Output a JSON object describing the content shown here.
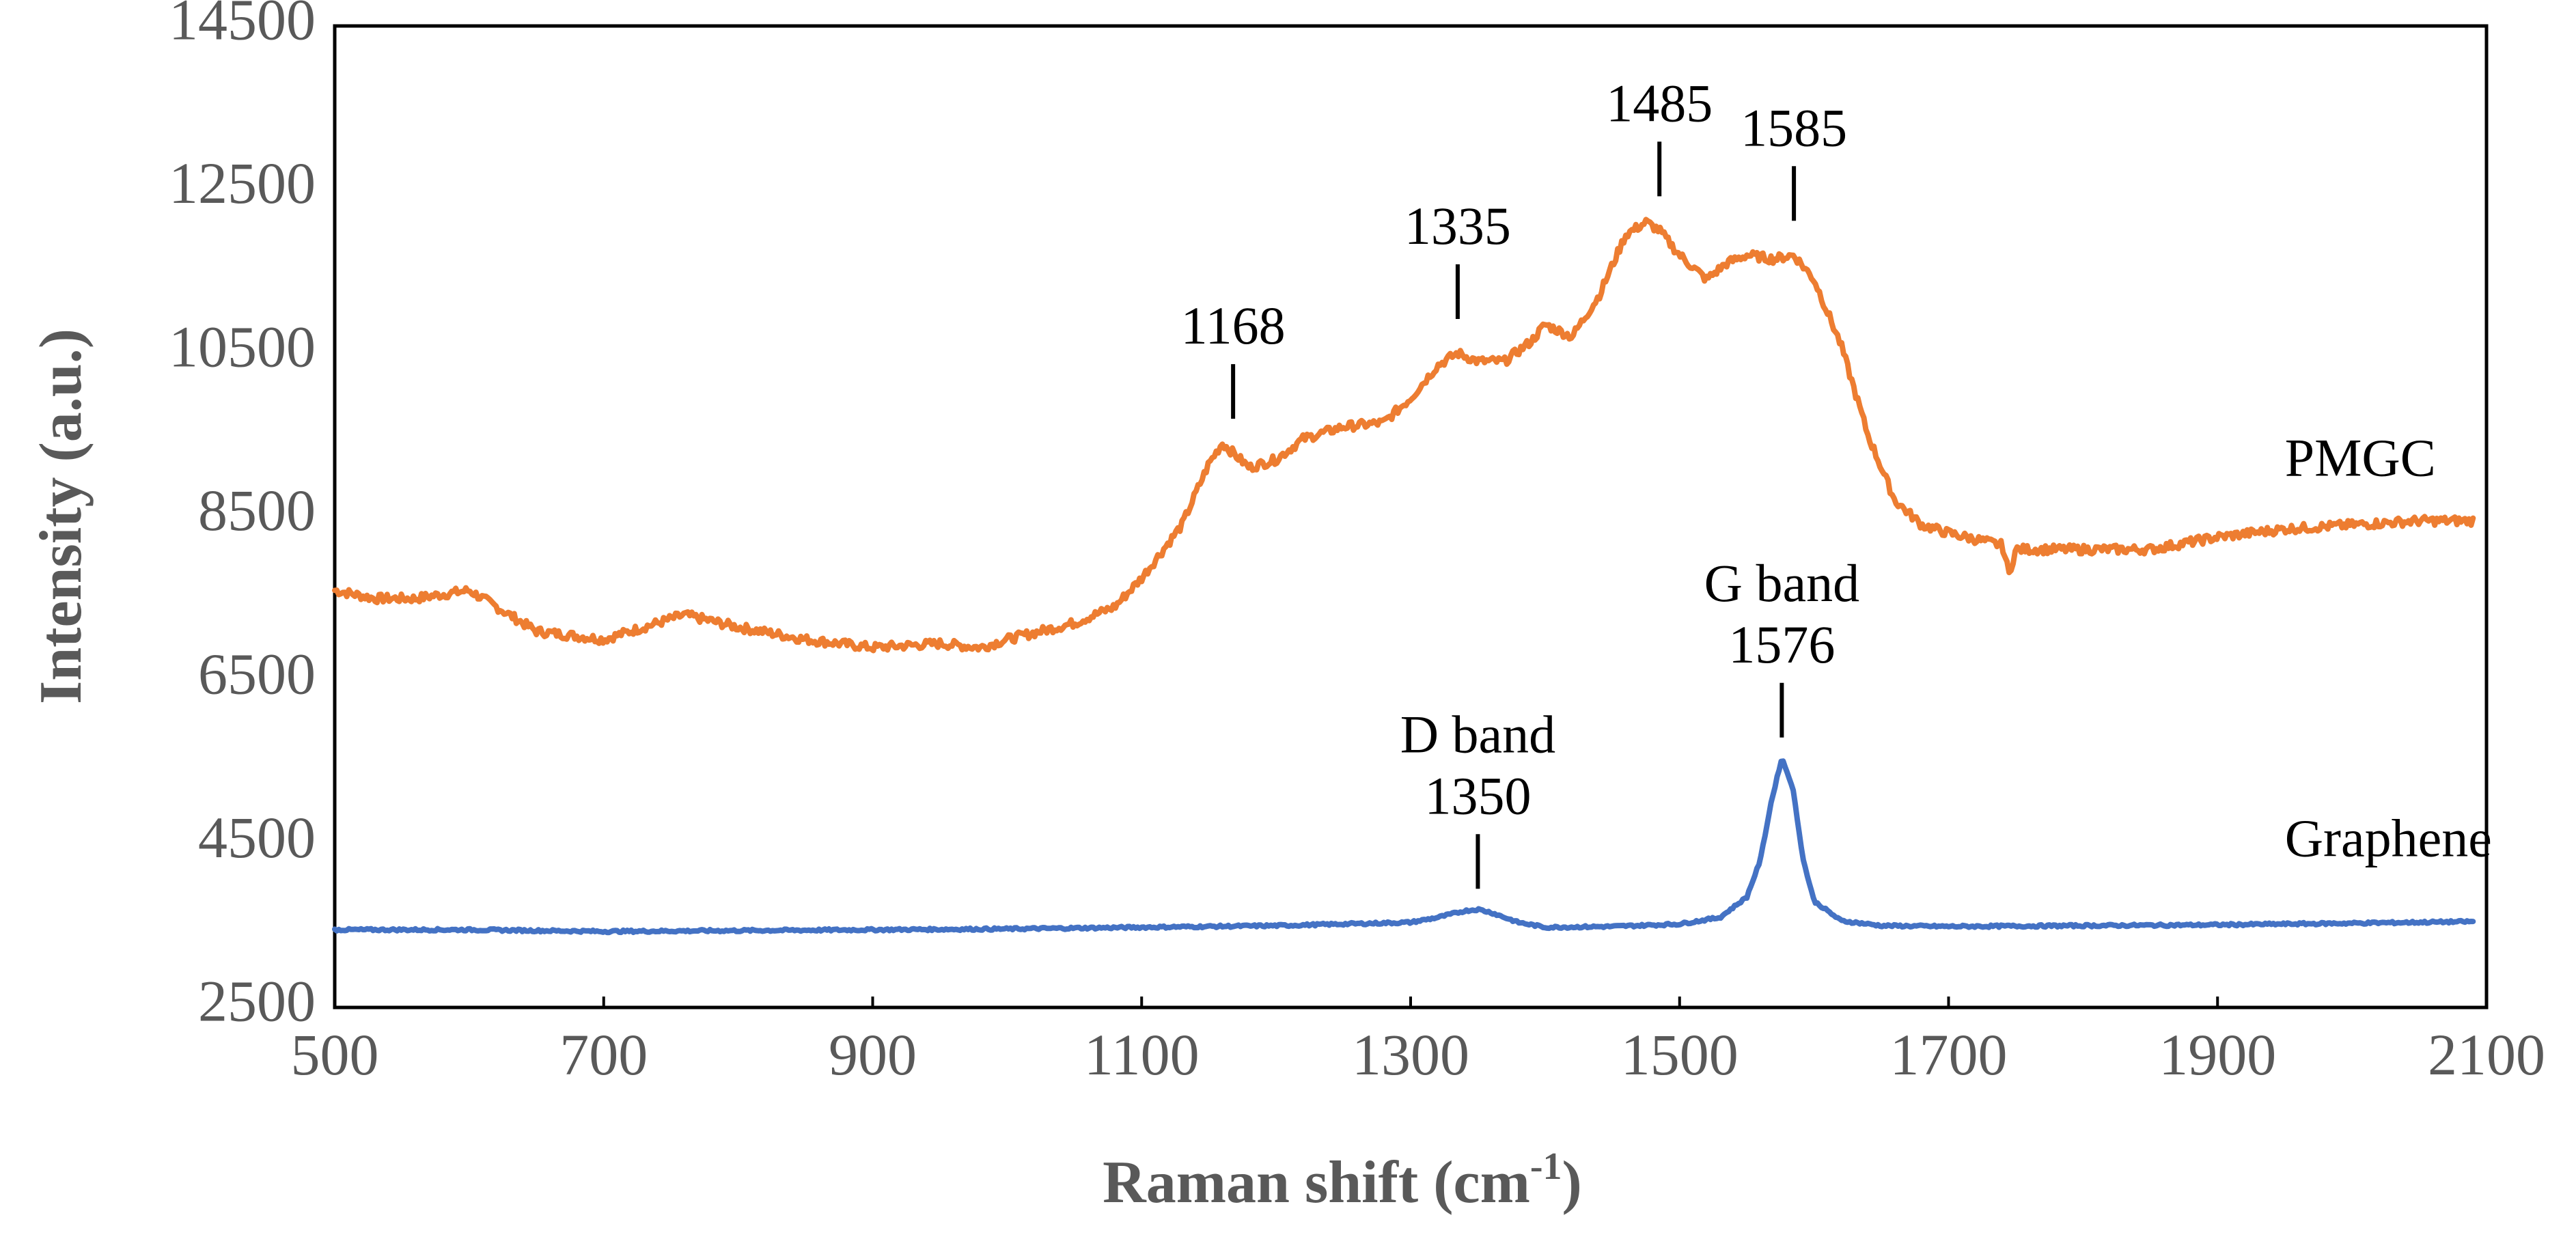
{
  "chart_data": {
    "type": "line",
    "title": "",
    "xlabel": "Raman shift (cm",
    "xlabel_sup": "-1",
    "xlabel_end": ")",
    "ylabel": "Intensity (a.u.)",
    "xlim": [
      500,
      2100
    ],
    "ylim": [
      2500,
      14500
    ],
    "xticks": [
      500,
      700,
      900,
      1100,
      1300,
      1500,
      1700,
      1900,
      2100
    ],
    "yticks": [
      2500,
      4500,
      6500,
      8500,
      10500,
      12500,
      14500
    ],
    "grid": false,
    "series": [
      {
        "name": "PMGC",
        "color": "#ED7D31",
        "x": [
          500,
          530,
          560,
          600,
          630,
          650,
          700,
          730,
          760,
          800,
          850,
          900,
          950,
          980,
          1000,
          1050,
          1080,
          1100,
          1130,
          1150,
          1160,
          1170,
          1180,
          1200,
          1220,
          1250,
          1280,
          1300,
          1320,
          1335,
          1350,
          1370,
          1390,
          1400,
          1420,
          1440,
          1460,
          1475,
          1485,
          1500,
          1520,
          1535,
          1550,
          1570,
          1585,
          1600,
          1620,
          1640,
          1660,
          1680,
          1700,
          1740,
          1745,
          1750,
          1800,
          1850,
          1900,
          1950,
          2000,
          2050,
          2090
        ],
        "y": [
          7600,
          7500,
          7500,
          7600,
          7300,
          7100,
          7000,
          7150,
          7300,
          7150,
          7000,
          6900,
          6950,
          6900,
          7000,
          7200,
          7400,
          7750,
          8400,
          9150,
          9400,
          9250,
          9100,
          9200,
          9450,
          9600,
          9650,
          9950,
          10350,
          10500,
          10400,
          10400,
          10650,
          10850,
          10700,
          11200,
          11950,
          12100,
          12000,
          11700,
          11400,
          11600,
          11700,
          11650,
          11700,
          11400,
          10600,
          9500,
          8700,
          8400,
          8300,
          8150,
          7800,
          8100,
          8100,
          8100,
          8250,
          8350,
          8400,
          8450,
          8450
        ]
      },
      {
        "name": "Graphene",
        "color": "#4472C4",
        "x": [
          500,
          600,
          700,
          800,
          900,
          1000,
          1100,
          1200,
          1250,
          1300,
          1320,
          1340,
          1350,
          1360,
          1380,
          1400,
          1450,
          1500,
          1530,
          1550,
          1560,
          1568,
          1576,
          1584,
          1592,
          1600,
          1620,
          1650,
          1700,
          1800,
          1900,
          2000,
          2090
        ],
        "y": [
          3450,
          3450,
          3430,
          3440,
          3450,
          3460,
          3480,
          3500,
          3520,
          3540,
          3600,
          3680,
          3700,
          3660,
          3540,
          3480,
          3490,
          3520,
          3600,
          3850,
          4300,
          5000,
          5550,
          5200,
          4300,
          3800,
          3560,
          3500,
          3490,
          3500,
          3510,
          3530,
          3550
        ]
      }
    ],
    "annotations": [
      {
        "text": "1168",
        "x": 1168,
        "series": "PMGC"
      },
      {
        "text": "1335",
        "x": 1335,
        "series": "PMGC"
      },
      {
        "text": "1485",
        "x": 1485,
        "series": "PMGC"
      },
      {
        "text": "1585",
        "x": 1585,
        "series": "PMGC"
      },
      {
        "text": "D band",
        "text2": "1350",
        "x": 1350,
        "series": "Graphene"
      },
      {
        "text": "G band",
        "text2": "1576",
        "x": 1576,
        "series": "Graphene"
      }
    ],
    "series_labels": [
      {
        "text": "PMGC",
        "x": 1950,
        "y": 9000
      },
      {
        "text": "Graphene",
        "x": 1950,
        "y": 4350
      }
    ]
  }
}
